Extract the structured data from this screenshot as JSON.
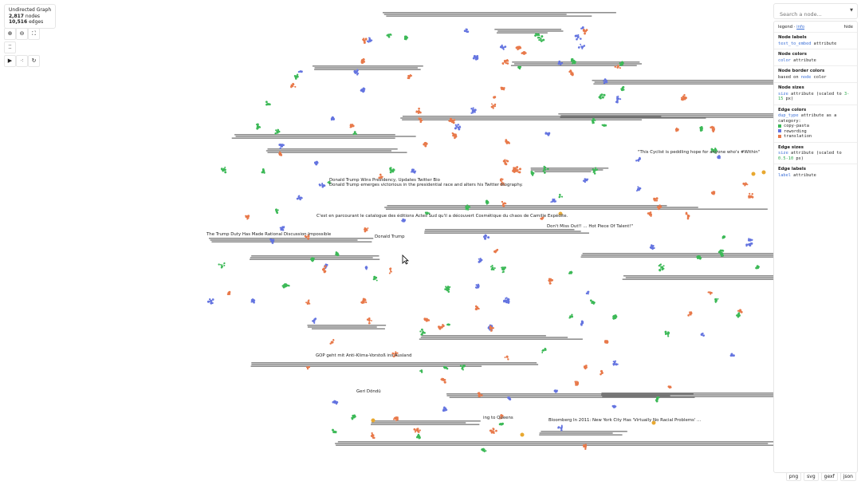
{
  "graph_info": {
    "title": "Undirected Graph",
    "nodes": "2,817",
    "nodes_label": "nodes",
    "edges": "10,516",
    "edges_label": "edges"
  },
  "controls": {
    "zoom_in": "zoom-in-icon",
    "zoom_out": "zoom-out-icon",
    "fit": "fit-icon",
    "fullscreen": "fullscreen-icon",
    "play": "play-icon",
    "layout": "layout-icon",
    "reset": "reset-icon"
  },
  "search": {
    "placeholder": "Search a node...",
    "value": ""
  },
  "legend": {
    "title": "legend",
    "sep": " · ",
    "info_link": "info",
    "hide": "hide",
    "node_labels": {
      "heading": "Node labels",
      "attr": "text_to_embed",
      "suffix": " attribute"
    },
    "node_colors": {
      "heading": "Node colors",
      "attr": "color",
      "suffix": " attribute"
    },
    "node_border": {
      "heading": "Node border colors",
      "prefix": "based on ",
      "attr": "node",
      "suffix": " color"
    },
    "node_sizes": {
      "heading": "Node sizes",
      "attr": "size",
      "mid": " attribute (scaled to ",
      "range": "3-15",
      "suffix": " px)"
    },
    "edge_colors": {
      "heading": "Edge colors",
      "attr": "dup_type",
      "suffix": " attribute as a category:",
      "categories": [
        {
          "label": "copy-pasta",
          "color": "#3cb957"
        },
        {
          "label": "rewording",
          "color": "#6474e0"
        },
        {
          "label": "translation",
          "color": "#e8794a"
        }
      ]
    },
    "edge_sizes": {
      "heading": "Edge sizes",
      "attr": "size",
      "mid": " attribute (scaled to ",
      "range": "0.5-10",
      "suffix": " px)"
    },
    "edge_labels": {
      "heading": "Edge labels",
      "attr": "label",
      "suffix": " attribute"
    }
  },
  "node_labels": [
    "Donald Trump Wins Presidency, Updates Twitter Bio",
    "Donald Trump emerges victorious in the presidential race and alters his Twitter biography.",
    "GOP geht mit Anti-Klima-Vorstoß ins Ausland",
    "Bloomberg In 2011: New York City Has 'Virtually No Racial Problems' ...",
    "\"This Cyclist is peddling hope for anyone who's #Within\"",
    "The Trump Duty Has Made Rational Discussion Impossible",
    "C'est en parcourant le catalogue des éditions Actes Sud qu'il a découvert Cosmétique du chaos de Camille Expédite.",
    "Geri Döndü",
    "ing to Queens",
    "Donald Trump",
    "Don't Miss Out!! ... Hot Piece Of Talent!\""
  ],
  "colors": {
    "copy_pasta": "#3cb957",
    "rewording": "#6474e0",
    "translation": "#e8794a",
    "highlight": "#e8a830"
  },
  "exports": [
    "png",
    "svg",
    "gexf",
    "json"
  ]
}
